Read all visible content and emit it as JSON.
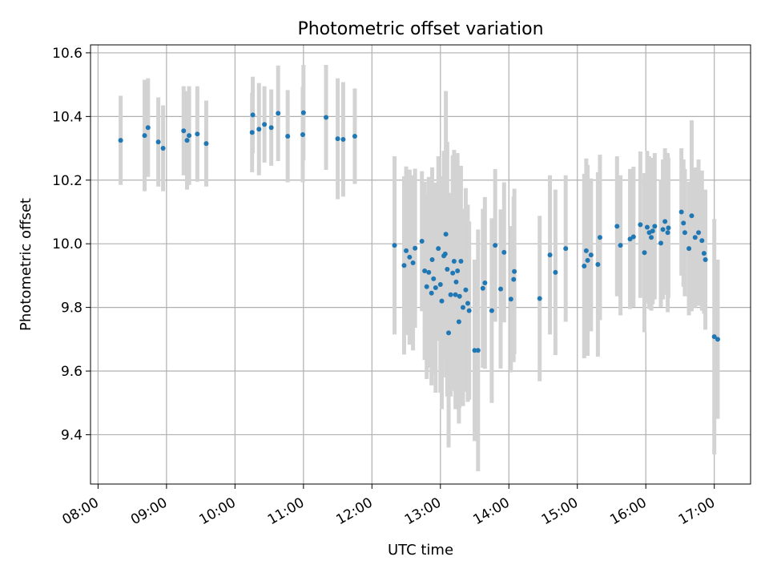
{
  "chart_data": {
    "type": "scatter",
    "title": "Photometric offset variation",
    "xlabel": "UTC time",
    "ylabel": "Photometric offset",
    "xlim": [
      7.89,
      17.53
    ],
    "ylim": [
      9.245,
      10.625
    ],
    "grid": true,
    "x_ticks": [
      8,
      9,
      10,
      11,
      12,
      13,
      14,
      15,
      16,
      17
    ],
    "x_tick_labels": [
      "08:00",
      "09:00",
      "10:00",
      "11:00",
      "12:00",
      "13:00",
      "14:00",
      "15:00",
      "16:00",
      "17:00"
    ],
    "y_ticks": [
      9.4,
      9.6,
      9.8,
      10.0,
      10.2,
      10.4,
      10.6
    ],
    "y_tick_labels": [
      "9.4",
      "9.6",
      "9.8",
      "10.0",
      "10.2",
      "10.4",
      "10.6"
    ],
    "point_color": "#1f77b4",
    "errorbar_color": "#d3d3d3",
    "series": [
      {
        "name": "Photometric offset",
        "x": [
          8.33,
          8.68,
          8.73,
          8.88,
          8.95,
          9.25,
          9.3,
          9.33,
          9.45,
          9.58,
          10.25,
          10.26,
          10.35,
          10.43,
          10.53,
          10.63,
          10.77,
          10.99,
          11.0,
          11.33,
          11.5,
          11.58,
          11.75,
          12.33,
          12.47,
          12.5,
          12.55,
          12.6,
          12.63,
          12.73,
          12.77,
          12.8,
          12.83,
          12.87,
          12.88,
          12.9,
          12.93,
          12.97,
          13.0,
          13.02,
          13.05,
          13.07,
          13.08,
          13.1,
          13.12,
          13.15,
          13.18,
          13.2,
          13.22,
          13.23,
          13.25,
          13.27,
          13.28,
          13.3,
          13.33,
          13.37,
          13.4,
          13.42,
          13.5,
          13.55,
          13.62,
          13.65,
          13.75,
          13.8,
          13.88,
          13.93,
          14.03,
          14.07,
          14.08,
          14.45,
          14.6,
          14.68,
          14.83,
          15.1,
          15.13,
          15.15,
          15.2,
          15.3,
          15.33,
          15.58,
          15.63,
          15.77,
          15.82,
          15.92,
          15.98,
          16.02,
          16.05,
          16.08,
          16.1,
          16.13,
          16.22,
          16.25,
          16.28,
          16.32,
          16.33,
          16.52,
          16.55,
          16.57,
          16.63,
          16.67,
          16.72,
          16.77,
          16.82,
          16.85,
          16.87,
          17.0,
          17.05
        ],
        "y": [
          10.325,
          10.34,
          10.365,
          10.32,
          10.3,
          10.355,
          10.325,
          10.34,
          10.345,
          10.315,
          10.35,
          10.405,
          10.36,
          10.375,
          10.365,
          10.41,
          10.338,
          10.343,
          10.412,
          10.397,
          10.33,
          10.328,
          10.338,
          9.995,
          9.932,
          9.978,
          9.958,
          9.94,
          9.986,
          10.008,
          9.915,
          9.865,
          9.91,
          9.845,
          9.95,
          9.89,
          9.862,
          9.985,
          9.872,
          9.82,
          9.962,
          9.968,
          10.03,
          9.92,
          9.72,
          9.84,
          9.908,
          9.945,
          9.84,
          9.88,
          9.915,
          9.755,
          9.835,
          9.945,
          9.8,
          9.855,
          9.813,
          9.79,
          9.665,
          9.665,
          9.86,
          9.877,
          9.79,
          9.995,
          9.858,
          9.973,
          9.826,
          9.888,
          9.913,
          9.828,
          9.965,
          9.91,
          9.985,
          9.93,
          9.978,
          9.948,
          9.965,
          9.935,
          10.02,
          10.055,
          9.995,
          10.015,
          10.022,
          10.06,
          9.972,
          10.052,
          10.035,
          10.02,
          10.04,
          10.055,
          10.002,
          10.045,
          10.07,
          10.035,
          10.05,
          10.1,
          10.065,
          10.035,
          9.985,
          10.088,
          10.02,
          10.035,
          10.01,
          9.97,
          9.95,
          9.708,
          9.7
        ],
        "err": [
          0.14,
          0.175,
          0.155,
          0.14,
          0.135,
          0.14,
          0.155,
          0.155,
          0.15,
          0.135,
          0.125,
          0.12,
          0.145,
          0.12,
          0.12,
          0.15,
          0.145,
          0.15,
          0.15,
          0.165,
          0.19,
          0.18,
          0.15,
          0.28,
          0.28,
          0.265,
          0.275,
          0.275,
          0.25,
          0.22,
          0.28,
          0.29,
          0.3,
          0.29,
          0.29,
          0.3,
          0.33,
          0.29,
          0.34,
          0.34,
          0.33,
          0.25,
          0.45,
          0.4,
          0.36,
          0.32,
          0.37,
          0.35,
          0.36,
          0.3,
          0.37,
          0.32,
          0.35,
          0.3,
          0.31,
          0.32,
          0.31,
          0.28,
          0.285,
          0.38,
          0.25,
          0.27,
          0.29,
          0.24,
          0.25,
          0.22,
          0.23,
          0.26,
          0.26,
          0.26,
          0.25,
          0.26,
          0.23,
          0.29,
          0.29,
          0.3,
          0.24,
          0.29,
          0.26,
          0.22,
          0.22,
          0.22,
          0.22,
          0.23,
          0.25,
          0.24,
          0.24,
          0.23,
          0.23,
          0.23,
          0.2,
          0.22,
          0.23,
          0.25,
          0.22,
          0.2,
          0.2,
          0.2,
          0.21,
          0.3,
          0.22,
          0.23,
          0.22,
          0.19,
          0.22,
          0.37,
          0.25
        ]
      }
    ]
  }
}
